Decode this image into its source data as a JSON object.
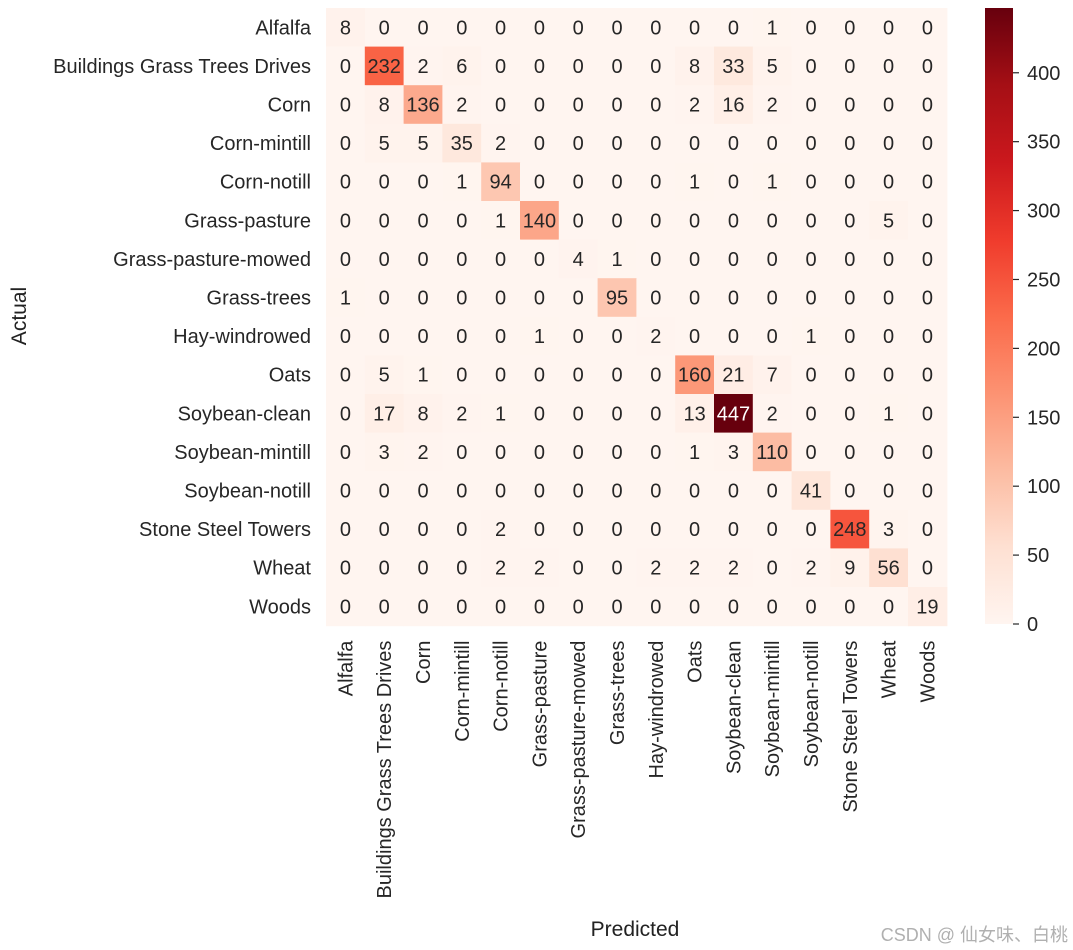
{
  "chart_data": {
    "type": "heatmap",
    "title": "",
    "xlabel": "Predicted",
    "ylabel": "Actual",
    "labels": [
      "Alfalfa",
      "Buildings Grass Trees Drives",
      "Corn",
      "Corn-mintill",
      "Corn-notill",
      "Grass-pasture",
      "Grass-pasture-mowed",
      "Grass-trees",
      "Hay-windrowed",
      "Oats",
      "Soybean-clean",
      "Soybean-mintill",
      "Soybean-notill",
      "Stone Steel Towers",
      "Wheat",
      "Woods"
    ],
    "matrix": [
      [
        8,
        0,
        0,
        0,
        0,
        0,
        0,
        0,
        0,
        0,
        0,
        1,
        0,
        0,
        0,
        0
      ],
      [
        0,
        232,
        2,
        6,
        0,
        0,
        0,
        0,
        0,
        8,
        33,
        5,
        0,
        0,
        0,
        0
      ],
      [
        0,
        8,
        136,
        2,
        0,
        0,
        0,
        0,
        0,
        2,
        16,
        2,
        0,
        0,
        0,
        0
      ],
      [
        0,
        5,
        5,
        35,
        2,
        0,
        0,
        0,
        0,
        0,
        0,
        0,
        0,
        0,
        0,
        0
      ],
      [
        0,
        0,
        0,
        1,
        94,
        0,
        0,
        0,
        0,
        1,
        0,
        1,
        0,
        0,
        0,
        0
      ],
      [
        0,
        0,
        0,
        0,
        1,
        140,
        0,
        0,
        0,
        0,
        0,
        0,
        0,
        0,
        5,
        0
      ],
      [
        0,
        0,
        0,
        0,
        0,
        0,
        4,
        1,
        0,
        0,
        0,
        0,
        0,
        0,
        0,
        0
      ],
      [
        1,
        0,
        0,
        0,
        0,
        0,
        0,
        95,
        0,
        0,
        0,
        0,
        0,
        0,
        0,
        0
      ],
      [
        0,
        0,
        0,
        0,
        0,
        1,
        0,
        0,
        2,
        0,
        0,
        0,
        1,
        0,
        0,
        0
      ],
      [
        0,
        5,
        1,
        0,
        0,
        0,
        0,
        0,
        0,
        160,
        21,
        7,
        0,
        0,
        0,
        0
      ],
      [
        0,
        17,
        8,
        2,
        1,
        0,
        0,
        0,
        0,
        13,
        447,
        2,
        0,
        0,
        1,
        0
      ],
      [
        0,
        3,
        2,
        0,
        0,
        0,
        0,
        0,
        0,
        1,
        3,
        110,
        0,
        0,
        0,
        0
      ],
      [
        0,
        0,
        0,
        0,
        0,
        0,
        0,
        0,
        0,
        0,
        0,
        0,
        41,
        0,
        0,
        0
      ],
      [
        0,
        0,
        0,
        0,
        2,
        0,
        0,
        0,
        0,
        0,
        0,
        0,
        0,
        248,
        3,
        0
      ],
      [
        0,
        0,
        0,
        0,
        2,
        2,
        0,
        0,
        2,
        2,
        2,
        0,
        2,
        9,
        56,
        0
      ],
      [
        0,
        0,
        0,
        0,
        0,
        0,
        0,
        0,
        0,
        0,
        0,
        0,
        0,
        0,
        0,
        19
      ]
    ],
    "colorbar": {
      "colormap": "Reds",
      "range": [
        0,
        447
      ],
      "ticks": [
        0,
        50,
        100,
        150,
        200,
        250,
        300,
        350,
        400
      ]
    },
    "grid": false,
    "annotations": "cell counts shown in each cell"
  },
  "watermark": "CSDN @ 仙女味、白桃"
}
